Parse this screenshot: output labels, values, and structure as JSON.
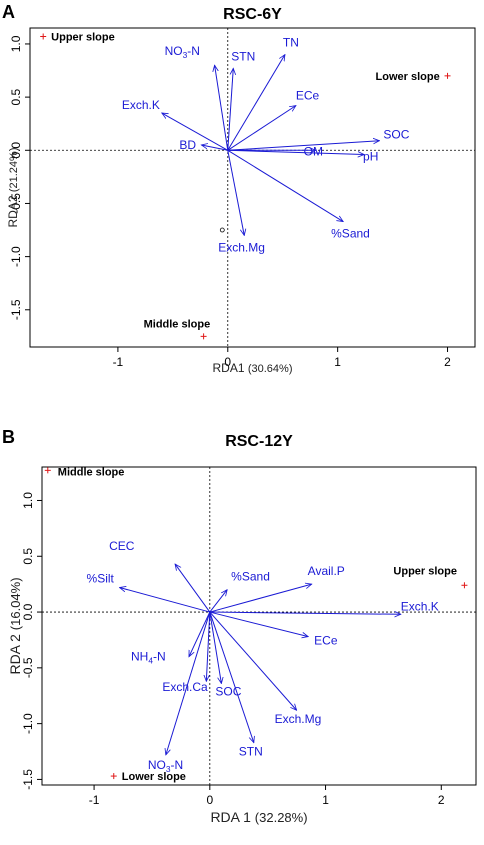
{
  "chart_data": [
    {
      "type": "scatter",
      "panel_letter": "A",
      "title": "RSC-6Y",
      "xlabel": "RDA1",
      "xlabel_pct": "(30.64%)",
      "ylabel": "RDA2",
      "ylabel_pct": "(21.24%)",
      "xlim": [
        -1.8,
        2.25
      ],
      "ylim": [
        -1.85,
        1.15
      ],
      "xticks": [
        -1,
        0,
        1,
        2
      ],
      "yticks": [
        -1.5,
        -1.0,
        -0.5,
        0.0,
        0.5,
        1.0
      ],
      "tick_labels_y": [
        "-1.5",
        "-1.0",
        "-0.5",
        "0.0",
        "0.5",
        "1.0"
      ],
      "arrows": [
        {
          "name": "Exch.K",
          "x": -0.6,
          "y": 0.35
        },
        {
          "name": "NO3-N",
          "x": -0.12,
          "y": 0.8
        },
        {
          "name": "STN",
          "x": 0.05,
          "y": 0.77
        },
        {
          "name": "TN",
          "x": 0.52,
          "y": 0.9
        },
        {
          "name": "ECe",
          "x": 0.62,
          "y": 0.42
        },
        {
          "name": "SOC",
          "x": 1.38,
          "y": 0.09
        },
        {
          "name": "OM",
          "x": 0.8,
          "y": 0.0
        },
        {
          "name": "pH",
          "x": 1.24,
          "y": -0.04
        },
        {
          "name": "BD",
          "x": -0.24,
          "y": 0.05
        },
        {
          "name": "%Sand",
          "x": 1.05,
          "y": -0.67
        },
        {
          "name": "Exch.Mg",
          "x": 0.15,
          "y": -0.8
        }
      ],
      "sites": [
        {
          "name": "Upper slope",
          "x": -1.68,
          "y": 1.07
        },
        {
          "name": "Lower slope",
          "x": 2.0,
          "y": 0.7
        },
        {
          "name": "Middle slope",
          "x": -0.22,
          "y": -1.75
        }
      ],
      "open_points": [
        {
          "x": -0.05,
          "y": -0.75
        }
      ]
    },
    {
      "type": "scatter",
      "panel_letter": "B",
      "title": "RSC-12Y",
      "xlabel": "RDA 1",
      "xlabel_pct": "(32.28%)",
      "ylabel": "RDA 2",
      "ylabel_pct": "(16.04%)",
      "xlim": [
        -1.45,
        2.3
      ],
      "ylim": [
        -1.55,
        1.3
      ],
      "xticks": [
        -1,
        0,
        1,
        2
      ],
      "yticks": [
        -1.5,
        -1.0,
        -0.5,
        0.0,
        0.5,
        1.0
      ],
      "tick_labels_y": [
        "-1.5",
        "-1.0",
        "-0.5",
        "0.0",
        "0.5",
        "1.0"
      ],
      "arrows": [
        {
          "name": "CEC",
          "x": -0.3,
          "y": 0.43
        },
        {
          "name": "%Silt",
          "x": -0.78,
          "y": 0.22
        },
        {
          "name": "%Sand",
          "x": 0.15,
          "y": 0.2
        },
        {
          "name": "Avail.P",
          "x": 0.88,
          "y": 0.25
        },
        {
          "name": "Exch.K",
          "x": 1.65,
          "y": -0.02
        },
        {
          "name": "ECe",
          "x": 0.85,
          "y": -0.22
        },
        {
          "name": "NH4-N",
          "x": -0.18,
          "y": -0.4
        },
        {
          "name": "Exch.Ca",
          "x": -0.03,
          "y": -0.62
        },
        {
          "name": "SOC",
          "x": 0.1,
          "y": -0.64
        },
        {
          "name": "Exch.Mg",
          "x": 0.75,
          "y": -0.88
        },
        {
          "name": "STN",
          "x": 0.38,
          "y": -1.17
        },
        {
          "name": "NO3-N",
          "x": -0.38,
          "y": -1.28
        }
      ],
      "sites": [
        {
          "name": "Middle slope",
          "x": -1.4,
          "y": 1.27
        },
        {
          "name": "Upper slope",
          "x": 2.2,
          "y": 0.24
        },
        {
          "name": "Lower slope",
          "x": -0.83,
          "y": -1.47
        }
      ]
    }
  ]
}
